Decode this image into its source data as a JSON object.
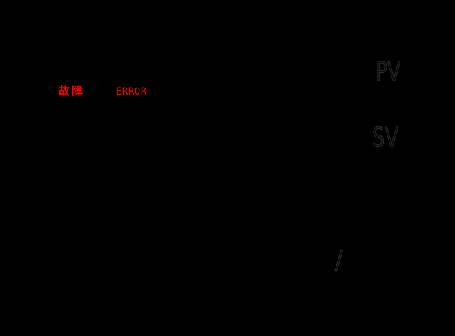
{
  "panel": {
    "colors": {
      "background": "#000000",
      "alarm_red": "#ff0000",
      "ghost_gray": "#333333"
    },
    "fault_indicator": {
      "label": "故障",
      "color": "#ff0000"
    },
    "error_text": {
      "label": "ERROR",
      "color": "#ff0000"
    },
    "display": {
      "pv_label": "PV",
      "sv_label": "SV",
      "slash_label": "/",
      "label_color": "#333333"
    }
  }
}
